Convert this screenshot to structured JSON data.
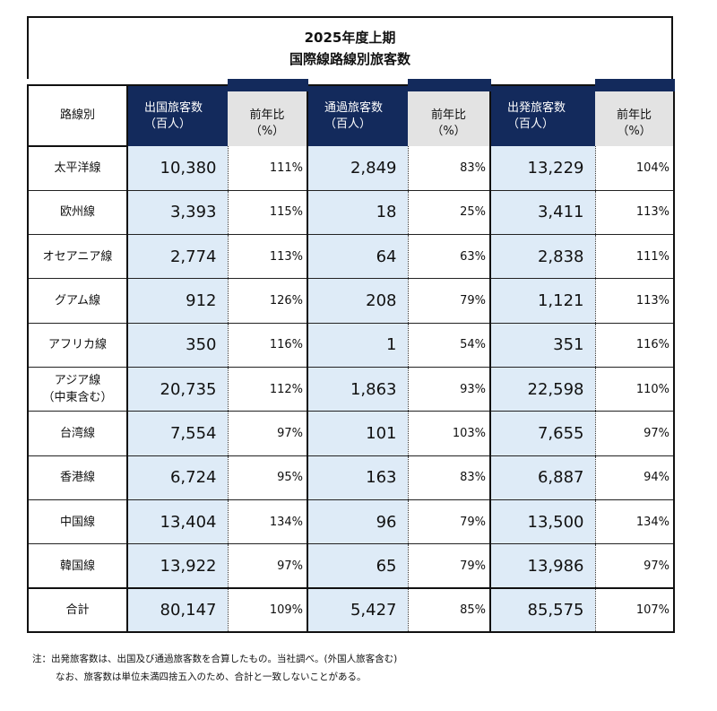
{
  "title": {
    "line1": "2025年度上期",
    "line2": "国際線路線別旅客数"
  },
  "headers": {
    "route": "路線別",
    "outbound": [
      "出国旅客数",
      "（百人）"
    ],
    "outbound_yoy": [
      "前年比",
      "（%）"
    ],
    "transit": [
      "通過旅客数",
      "（百人）"
    ],
    "transit_yoy": [
      "前年比",
      "（%）"
    ],
    "departing": [
      "出発旅客数",
      "（百人）"
    ],
    "departing_yoy": [
      "前年比",
      "（%）"
    ]
  },
  "rows": [
    {
      "route": [
        "太平洋線"
      ],
      "outbound": "10,380",
      "outbound_yoy": "111%",
      "transit": "2,849",
      "transit_yoy": "83%",
      "departing": "13,229",
      "departing_yoy": "104%"
    },
    {
      "route": [
        "欧州線"
      ],
      "outbound": "3,393",
      "outbound_yoy": "115%",
      "transit": "18",
      "transit_yoy": "25%",
      "departing": "3,411",
      "departing_yoy": "113%"
    },
    {
      "route": [
        "オセアニア線"
      ],
      "outbound": "2,774",
      "outbound_yoy": "113%",
      "transit": "64",
      "transit_yoy": "63%",
      "departing": "2,838",
      "departing_yoy": "111%"
    },
    {
      "route": [
        "グアム線"
      ],
      "outbound": "912",
      "outbound_yoy": "126%",
      "transit": "208",
      "transit_yoy": "79%",
      "departing": "1,121",
      "departing_yoy": "113%"
    },
    {
      "route": [
        "アフリカ線"
      ],
      "outbound": "350",
      "outbound_yoy": "116%",
      "transit": "1",
      "transit_yoy": "54%",
      "departing": "351",
      "departing_yoy": "116%"
    },
    {
      "route": [
        "アジア線",
        "（中東含む）"
      ],
      "outbound": "20,735",
      "outbound_yoy": "112%",
      "transit": "1,863",
      "transit_yoy": "93%",
      "departing": "22,598",
      "departing_yoy": "110%"
    },
    {
      "route": [
        "台湾線"
      ],
      "outbound": "7,554",
      "outbound_yoy": "97%",
      "transit": "101",
      "transit_yoy": "103%",
      "departing": "7,655",
      "departing_yoy": "97%"
    },
    {
      "route": [
        "香港線"
      ],
      "outbound": "6,724",
      "outbound_yoy": "95%",
      "transit": "163",
      "transit_yoy": "83%",
      "departing": "6,887",
      "departing_yoy": "94%"
    },
    {
      "route": [
        "中国線"
      ],
      "outbound": "13,404",
      "outbound_yoy": "134%",
      "transit": "96",
      "transit_yoy": "79%",
      "departing": "13,500",
      "departing_yoy": "134%"
    },
    {
      "route": [
        "韓国線"
      ],
      "outbound": "13,922",
      "outbound_yoy": "97%",
      "transit": "65",
      "transit_yoy": "79%",
      "departing": "13,986",
      "departing_yoy": "97%"
    }
  ],
  "total": {
    "route": [
      "合計"
    ],
    "outbound": "80,147",
    "outbound_yoy": "109%",
    "transit": "5,427",
    "transit_yoy": "85%",
    "departing": "85,575",
    "departing_yoy": "107%"
  },
  "notes": {
    "line1": "注：出発旅客数は、出国及び通過旅客数を合算したもの。当社調べ。(外国人旅客含む)",
    "line2": "なお、旅客数は単位未満四捨五入のため、合計と一致しないことがある。"
  },
  "colors": {
    "header_navy": "#132a5c",
    "header_gray": "#e3e3e3",
    "value_cell_blue": "#deebf7"
  }
}
